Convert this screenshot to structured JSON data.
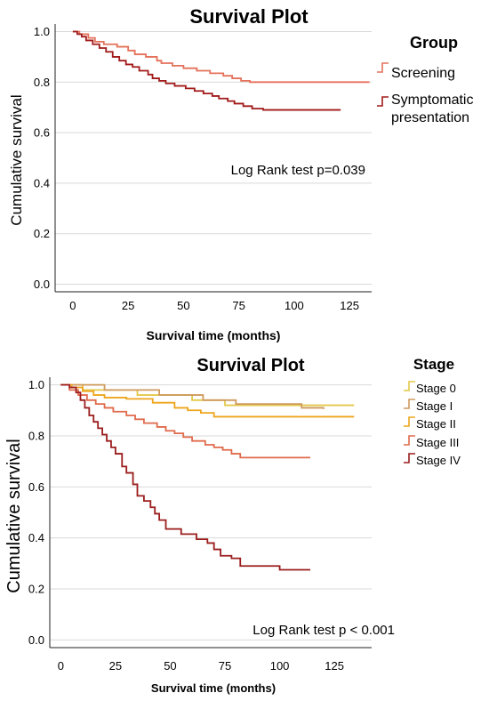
{
  "chart_data": [
    {
      "type": "line",
      "step": true,
      "title": "Survival Plot",
      "xlabel": "Survival time (months)",
      "ylabel": "Cumulative survival",
      "xlim": [
        -8,
        135
      ],
      "ylim": [
        -0.03,
        1.03
      ],
      "xticks": [
        0,
        25,
        50,
        75,
        100,
        125
      ],
      "yticks": [
        0.0,
        0.2,
        0.4,
        0.6,
        0.8,
        1.0
      ],
      "grid": true,
      "legend": {
        "title": "Group",
        "position": "right"
      },
      "annotation": "Log Rank test p=0.039",
      "series": [
        {
          "name": "Screening",
          "color": "#e4715a",
          "points": [
            [
              0,
              1.0
            ],
            [
              3,
              0.99
            ],
            [
              7,
              0.975
            ],
            [
              10,
              0.96
            ],
            [
              14,
              0.95
            ],
            [
              20,
              0.94
            ],
            [
              25,
              0.925
            ],
            [
              28,
              0.91
            ],
            [
              33,
              0.9
            ],
            [
              38,
              0.885
            ],
            [
              40,
              0.875
            ],
            [
              45,
              0.865
            ],
            [
              50,
              0.855
            ],
            [
              56,
              0.845
            ],
            [
              62,
              0.835
            ],
            [
              68,
              0.825
            ],
            [
              72,
              0.815
            ],
            [
              76,
              0.805
            ],
            [
              80,
              0.8
            ],
            [
              134,
              0.8
            ]
          ]
        },
        {
          "name": "Symptomatic presentation",
          "color": "#a11a1a",
          "points": [
            [
              0,
              1.0
            ],
            [
              2,
              0.99
            ],
            [
              4,
              0.98
            ],
            [
              6,
              0.965
            ],
            [
              9,
              0.95
            ],
            [
              12,
              0.935
            ],
            [
              15,
              0.92
            ],
            [
              18,
              0.9
            ],
            [
              21,
              0.885
            ],
            [
              24,
              0.87
            ],
            [
              27,
              0.86
            ],
            [
              30,
              0.845
            ],
            [
              34,
              0.83
            ],
            [
              36,
              0.815
            ],
            [
              39,
              0.805
            ],
            [
              42,
              0.795
            ],
            [
              46,
              0.785
            ],
            [
              51,
              0.775
            ],
            [
              55,
              0.765
            ],
            [
              59,
              0.755
            ],
            [
              63,
              0.745
            ],
            [
              66,
              0.735
            ],
            [
              70,
              0.725
            ],
            [
              73,
              0.715
            ],
            [
              77,
              0.705
            ],
            [
              81,
              0.695
            ],
            [
              86,
              0.69
            ],
            [
              121,
              0.69
            ]
          ]
        }
      ]
    },
    {
      "type": "line",
      "step": true,
      "title": "Survival Plot",
      "xlabel": "Survival time (months)",
      "ylabel": "Cumulative survival",
      "xlim": [
        -5,
        142
      ],
      "ylim": [
        -0.03,
        1.03
      ],
      "xticks": [
        0,
        25,
        50,
        75,
        100,
        125
      ],
      "yticks": [
        0.0,
        0.2,
        0.4,
        0.6,
        0.8,
        1.0
      ],
      "grid": true,
      "legend": {
        "title": "Stage",
        "position": "right"
      },
      "annotation": "Log Rank test p < 0.001",
      "series": [
        {
          "name": "Stage 0",
          "color": "#e3c84a",
          "points": [
            [
              0,
              1.0
            ],
            [
              10,
              0.98
            ],
            [
              35,
              0.96
            ],
            [
              60,
              0.94
            ],
            [
              75,
              0.92
            ],
            [
              134,
              0.92
            ]
          ]
        },
        {
          "name": "Stage I",
          "color": "#cf9a5e",
          "points": [
            [
              0,
              1.0
            ],
            [
              20,
              0.98
            ],
            [
              45,
              0.96
            ],
            [
              65,
              0.94
            ],
            [
              80,
              0.925
            ],
            [
              110,
              0.91
            ],
            [
              120,
              0.905
            ]
          ]
        },
        {
          "name": "Stage II",
          "color": "#eda51d",
          "points": [
            [
              0,
              1.0
            ],
            [
              5,
              0.99
            ],
            [
              10,
              0.975
            ],
            [
              15,
              0.96
            ],
            [
              20,
              0.95
            ],
            [
              30,
              0.945
            ],
            [
              42,
              0.93
            ],
            [
              52,
              0.91
            ],
            [
              58,
              0.9
            ],
            [
              64,
              0.89
            ],
            [
              70,
              0.875
            ],
            [
              100,
              0.875
            ],
            [
              134,
              0.875
            ]
          ]
        },
        {
          "name": "Stage III",
          "color": "#e06a4c",
          "points": [
            [
              0,
              1.0
            ],
            [
              4,
              0.98
            ],
            [
              8,
              0.96
            ],
            [
              12,
              0.94
            ],
            [
              16,
              0.925
            ],
            [
              20,
              0.91
            ],
            [
              24,
              0.895
            ],
            [
              30,
              0.88
            ],
            [
              34,
              0.865
            ],
            [
              38,
              0.85
            ],
            [
              44,
              0.835
            ],
            [
              48,
              0.82
            ],
            [
              52,
              0.81
            ],
            [
              56,
              0.795
            ],
            [
              60,
              0.78
            ],
            [
              66,
              0.765
            ],
            [
              70,
              0.755
            ],
            [
              74,
              0.745
            ],
            [
              78,
              0.73
            ],
            [
              82,
              0.715
            ],
            [
              114,
              0.715
            ]
          ]
        },
        {
          "name": "Stage IV",
          "color": "#9b1d1d",
          "points": [
            [
              0,
              1.0
            ],
            [
              4,
              0.99
            ],
            [
              7,
              0.97
            ],
            [
              9,
              0.94
            ],
            [
              11,
              0.91
            ],
            [
              13,
              0.88
            ],
            [
              15,
              0.855
            ],
            [
              17,
              0.83
            ],
            [
              19,
              0.805
            ],
            [
              21,
              0.78
            ],
            [
              23,
              0.755
            ],
            [
              25,
              0.73
            ],
            [
              28,
              0.68
            ],
            [
              30,
              0.655
            ],
            [
              33,
              0.61
            ],
            [
              35,
              0.565
            ],
            [
              38,
              0.545
            ],
            [
              41,
              0.52
            ],
            [
              43,
              0.495
            ],
            [
              45,
              0.47
            ],
            [
              48,
              0.435
            ],
            [
              55,
              0.415
            ],
            [
              62,
              0.395
            ],
            [
              67,
              0.38
            ],
            [
              70,
              0.355
            ],
            [
              73,
              0.33
            ],
            [
              78,
              0.32
            ],
            [
              82,
              0.29
            ],
            [
              100,
              0.275
            ],
            [
              114,
              0.275
            ]
          ]
        }
      ]
    }
  ]
}
